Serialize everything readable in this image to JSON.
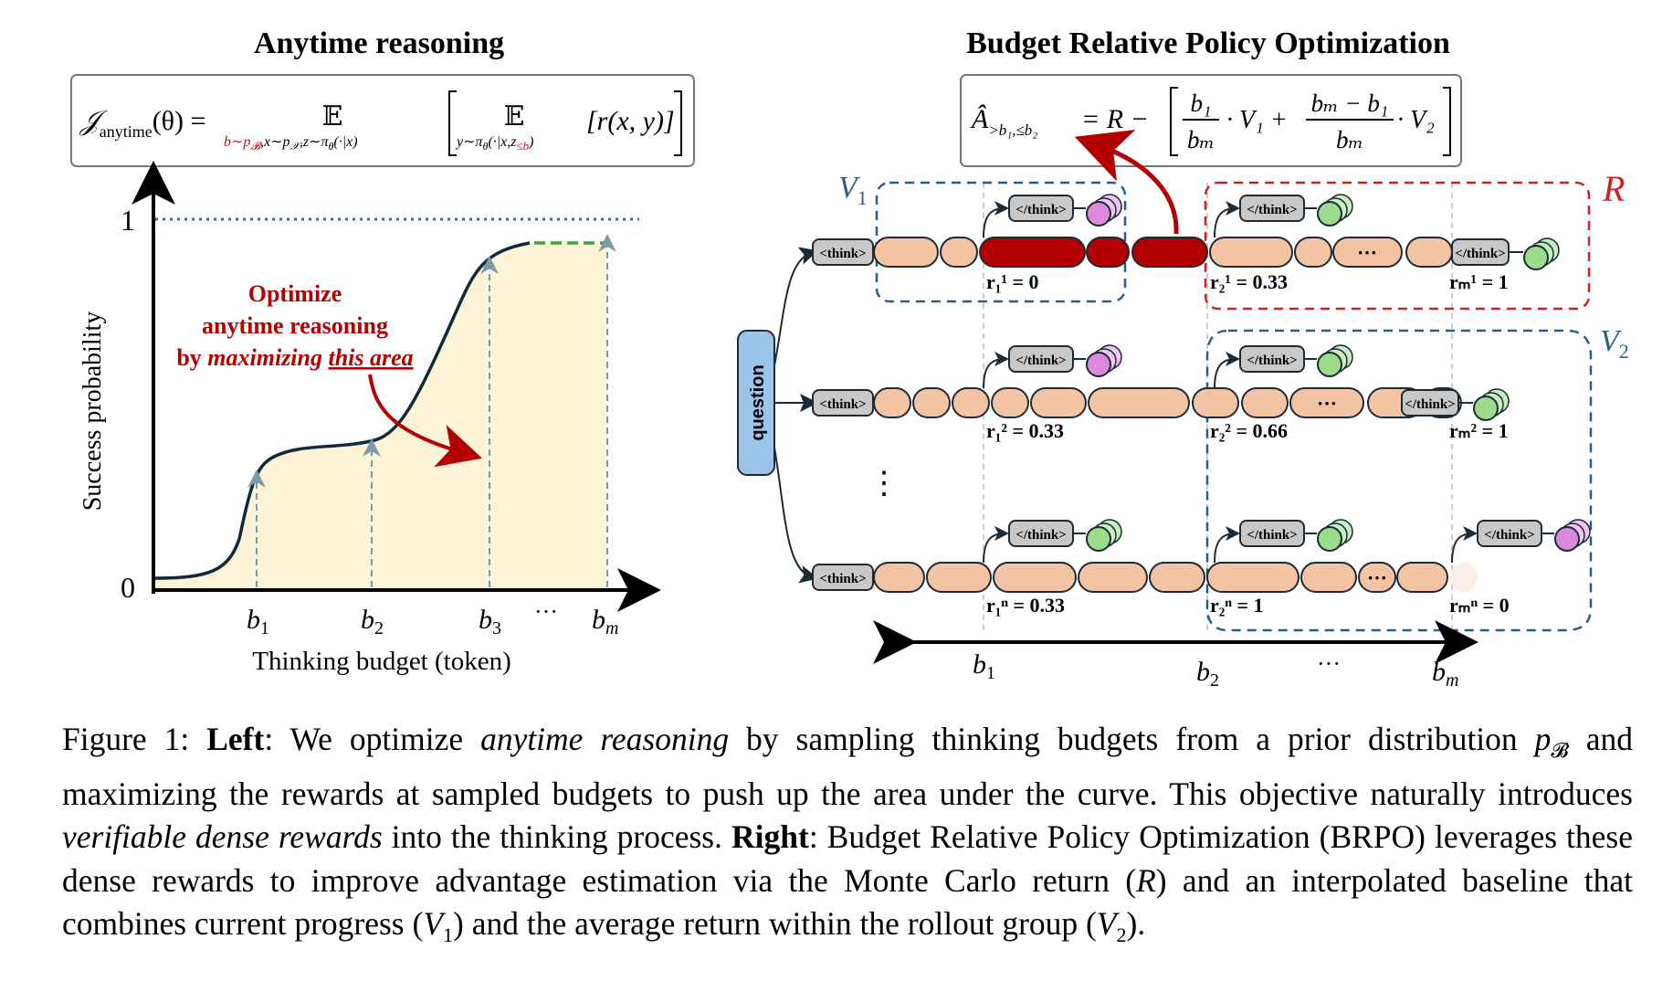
{
  "left": {
    "title": "Anytime reasoning",
    "formula": {
      "lhs": "𝒥",
      "lhs_sub": "anytime",
      "lhs_arg": "(θ) =",
      "expect": "𝔼",
      "outer_sub_red": "b∼p",
      "outer_sub_red_sub": "𝓑",
      "outer_sub_rest": ",x∼p",
      "outer_sub_rest_sub": "𝒳",
      "outer_sub_tail": ",z∼π",
      "outer_sub_tail_sub": "θ",
      "outer_sub_end": "(·|x)",
      "inner_expect": "𝔼",
      "inner_sub": "y∼π",
      "inner_sub_sub": "θ",
      "inner_sub_mid": "(·|x,z",
      "inner_sub_red": "≤b",
      "inner_sub_end": ")",
      "reward": "[r(x, y)]"
    },
    "ylabel": "Success probability",
    "xlabel": "Thinking budget (token)",
    "ytick_top": "1",
    "ytick_bottom": "0",
    "budgets": [
      "b",
      "b",
      "b",
      "b"
    ],
    "budget_subs": [
      "1",
      "2",
      "3",
      "m"
    ],
    "ellipsis": "···",
    "annotation_line1": "Optimize",
    "annotation_line2": "anytime reasoning",
    "annotation_line3_pre": "by ",
    "annotation_line3_em": "maximizing",
    "annotation_line3_u": "this area",
    "colors": {
      "fill": "#fdf3d6",
      "curve": "#0f2a3a",
      "red": "#b30000",
      "dashed_top": "#2f6f8f",
      "green": "#3aa63a"
    }
  },
  "chart_data": {
    "type": "area",
    "title": "Anytime reasoning",
    "xlabel": "Thinking budget (token)",
    "ylabel": "Success probability",
    "ylim": [
      0,
      1
    ],
    "x_ticks": [
      "b1",
      "b2",
      "b3",
      "bm"
    ],
    "values_at_ticks": [
      0.3,
      0.4,
      0.94,
      0.94
    ]
  },
  "right": {
    "title": "Budget Relative Policy Optimization",
    "formula": {
      "a_hat": "Â",
      "a_sub": ">b₁,≤b₂",
      "eq": "= R −",
      "frac1_num": "b₁",
      "frac1_den": "bₘ",
      "v1": "· V₁ +",
      "frac2_num": "bₘ − b₁",
      "frac2_den": "bₘ",
      "v2": "· V₂"
    },
    "question": "question",
    "think_open": "<think>",
    "think_close": "</think>",
    "label_R": "R",
    "label_V1": "V",
    "label_V1_sub": "1",
    "label_V2": "V",
    "label_V2_sub": "2",
    "ellipsis": "···",
    "vdots": "⋮",
    "rewards": [
      [
        "r₁¹ = 0",
        "r₂¹ = 0.33",
        "rₘ¹ = 1"
      ],
      [
        "r₁² = 0.33",
        "r₂² = 0.66",
        "rₘ² = 1"
      ],
      [
        "r₁ⁿ = 0.33",
        "r₂ⁿ = 1",
        "rₘⁿ = 0"
      ]
    ],
    "axis_labels": [
      "b",
      "b",
      "···",
      "b"
    ],
    "axis_subs": [
      "1",
      "2",
      "",
      "m"
    ],
    "colors": {
      "token": "#f4c3a3",
      "token_red": "#b40000",
      "think": "#c8c8c8",
      "question": "#9cc3e8",
      "green": "#9bdc8c",
      "pink": "#dd88dd",
      "blue_dash": "#2c5f7f",
      "red_dash": "#cc2222"
    }
  },
  "caption": {
    "fig": "Figure 1:",
    "left_b": "Left",
    "t1": ": We optimize ",
    "t1_i": "anytime reasoning",
    "t2": " by sampling thinking budgets from a prior distribution ",
    "t2_i": "p",
    "t2_sub": "𝓑",
    "t3": " and maximizing the rewards at sampled budgets to push up the area under the curve. This objective naturally introduces ",
    "t3_i": "verifiable dense rewards",
    "t4": " into the thinking process. ",
    "right_b": "Right",
    "t5": ": Budget Relative Policy Optimization (BRPO) leverages these dense rewards to improve advantage estimation via the Monte Carlo return (",
    "t5_i": "R",
    "t6": ") and an interpolated baseline that combines current progress (",
    "t6_i": "V",
    "t6_sub": "1",
    "t7": ") and the average return within the rollout group (",
    "t7_i": "V",
    "t7_sub": "2",
    "t8": ")."
  }
}
